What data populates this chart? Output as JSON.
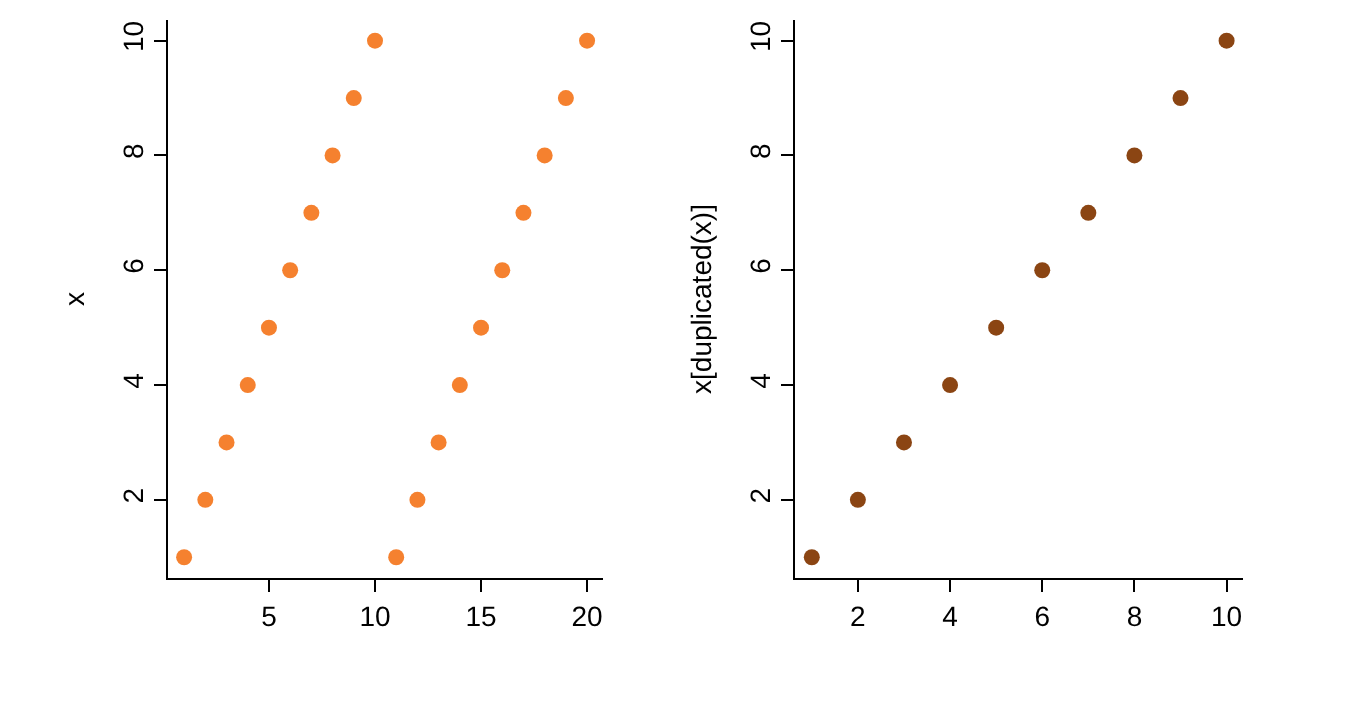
{
  "chart_data": [
    {
      "type": "scatter",
      "ylabel": "x",
      "x": [
        1,
        2,
        3,
        4,
        5,
        6,
        7,
        8,
        9,
        10,
        11,
        12,
        13,
        14,
        15,
        16,
        17,
        18,
        19,
        20
      ],
      "series": [
        {
          "color": "#f5812f",
          "values": [
            1,
            2,
            3,
            4,
            5,
            6,
            7,
            8,
            9,
            10,
            1,
            2,
            3,
            4,
            5,
            6,
            7,
            8,
            9,
            10
          ]
        }
      ],
      "xlim": [
        0.24,
        20.76
      ],
      "xticks": [
        5,
        10,
        15,
        20
      ],
      "ylim": [
        0.64,
        10.36
      ],
      "yticks": [
        2,
        4,
        6,
        8,
        10
      ],
      "marker": "circle"
    },
    {
      "type": "scatter",
      "ylabel": "x[duplicated(x)]",
      "x": [
        1,
        2,
        3,
        4,
        5,
        6,
        7,
        8,
        9,
        10
      ],
      "series": [
        {
          "color": "#8b4513",
          "values": [
            1,
            2,
            3,
            4,
            5,
            6,
            7,
            8,
            9,
            10
          ]
        }
      ],
      "xlim": [
        0.64,
        10.36
      ],
      "xticks": [
        2,
        4,
        6,
        8,
        10
      ],
      "ylim": [
        0.64,
        10.36
      ],
      "yticks": [
        2,
        4,
        6,
        8,
        10
      ],
      "marker": "circle"
    }
  ]
}
